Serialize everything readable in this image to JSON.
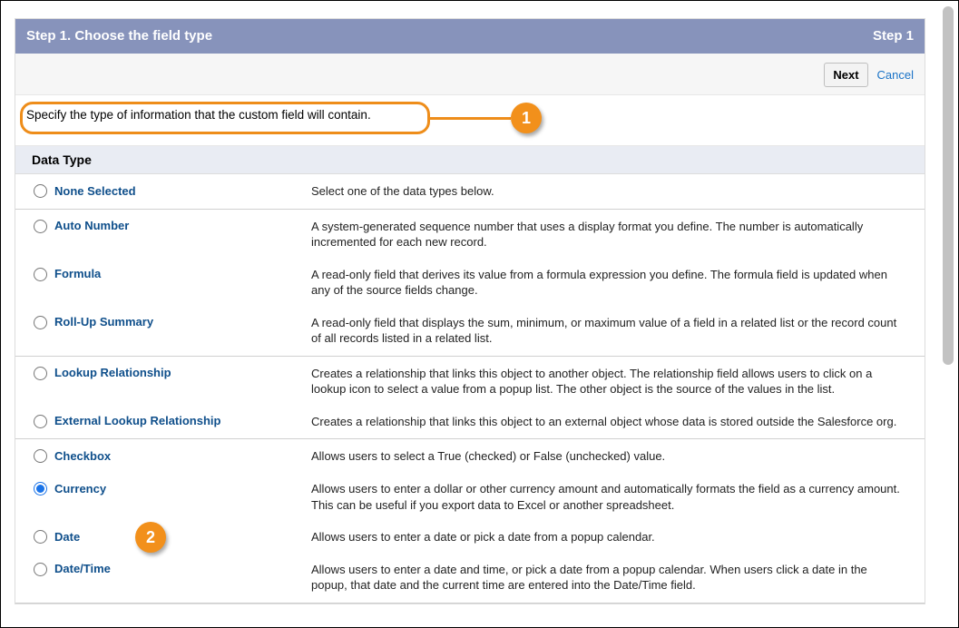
{
  "header": {
    "title_left": "Step 1. Choose the field type",
    "title_right": "Step 1"
  },
  "actions": {
    "next_label": "Next",
    "cancel_label": "Cancel"
  },
  "instruction": "Specify the type of information that the custom field will contain.",
  "section_heading": "Data Type",
  "groups": [
    {
      "rows": [
        {
          "key": "none",
          "label": "None Selected",
          "desc": "Select one of the data types below.",
          "selected": false
        }
      ]
    },
    {
      "rows": [
        {
          "key": "auto_number",
          "label": "Auto Number",
          "desc": "A system-generated sequence number that uses a display format you define. The number is automatically incremented for each new record.",
          "selected": false
        },
        {
          "key": "formula",
          "label": "Formula",
          "desc": "A read-only field that derives its value from a formula expression you define. The formula field is updated when any of the source fields change.",
          "selected": false
        },
        {
          "key": "rollup",
          "label": "Roll-Up Summary",
          "desc": "A read-only field that displays the sum, minimum, or maximum value of a field in a related list or the record count of all records listed in a related list.",
          "selected": false
        }
      ]
    },
    {
      "rows": [
        {
          "key": "lookup",
          "label": "Lookup Relationship",
          "desc": "Creates a relationship that links this object to another object. The relationship field allows users to click on a lookup icon to select a value from a popup list. The other object is the source of the values in the list.",
          "selected": false
        },
        {
          "key": "ext_lookup",
          "label": "External Lookup Relationship",
          "desc": "Creates a relationship that links this object to an external object whose data is stored outside the Salesforce org.",
          "selected": false
        }
      ]
    },
    {
      "rows": [
        {
          "key": "checkbox",
          "label": "Checkbox",
          "desc": "Allows users to select a True (checked) or False (unchecked) value.",
          "selected": false
        },
        {
          "key": "currency",
          "label": "Currency",
          "desc": "Allows users to enter a dollar or other currency amount and automatically formats the field as a currency amount. This can be useful if you export data to Excel or another spreadsheet.",
          "selected": true
        },
        {
          "key": "date",
          "label": "Date",
          "desc": "Allows users to enter a date or pick a date from a popup calendar.",
          "selected": false
        },
        {
          "key": "datetime",
          "label": "Date/Time",
          "desc": "Allows users to enter a date and time, or pick a date from a popup calendar. When users click a date in the popup, that date and the current time are entered into the Date/Time field.",
          "selected": false
        }
      ]
    }
  ],
  "callouts": {
    "c1": "1",
    "c2": "2"
  },
  "colors": {
    "header_bg": "#8793bb",
    "link": "#1a73c7",
    "radio_label": "#0f4f8b",
    "callout": "#ee8d1a"
  }
}
